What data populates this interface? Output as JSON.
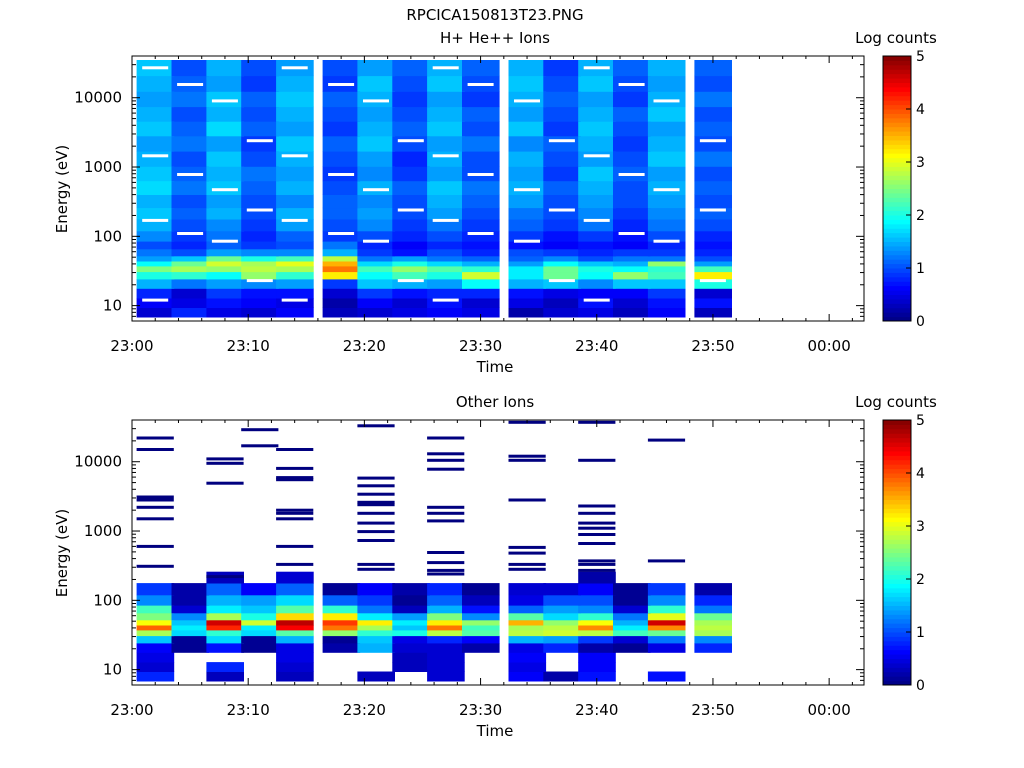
{
  "figure": {
    "title": "RPCICA150813T23.PNG"
  },
  "colors": {
    "colormap": [
      "#00007f",
      "#0000ff",
      "#007fff",
      "#00ffff",
      "#7fff7f",
      "#ffff00",
      "#ff7f00",
      "#ff0000",
      "#7f0000"
    ],
    "background": "#ffffff",
    "axis": "#000000"
  },
  "chart_data": [
    {
      "type": "heatmap",
      "title": "H+ He++ Ions",
      "xlabel": "Time",
      "ylabel": "Energy (eV)",
      "yscale": "log",
      "ylim": [
        6,
        40000
      ],
      "xlim": [
        "23:00",
        "00:03"
      ],
      "x_tick_labels": [
        "23:00",
        "23:10",
        "23:20",
        "23:30",
        "23:40",
        "23:50",
        "00:00"
      ],
      "y_tick_labels": [
        "10",
        "100",
        "1000",
        "10000"
      ],
      "colorbar": {
        "label": "Log counts",
        "range": [
          0,
          5
        ],
        "tick_labels": [
          "0",
          "1",
          "2",
          "3",
          "4",
          "5"
        ]
      },
      "time_bins": [
        "23:02",
        "23:05",
        "23:08",
        "23:11",
        "23:14",
        "23:18",
        "23:21",
        "23:24",
        "23:27",
        "23:30",
        "23:34",
        "23:37",
        "23:40",
        "23:43",
        "23:46",
        "23:50"
      ],
      "energy_bins": [
        8,
        11,
        15,
        21,
        28,
        34,
        41,
        47,
        58,
        75,
        96,
        150,
        210,
        320,
        500,
        800,
        1300,
        2200,
        3600,
        5800,
        9500,
        16000,
        27000
      ],
      "values": [
        [
          0.4,
          0.8,
          0.5,
          0.4,
          0.6,
          0.3,
          0.4,
          0.5,
          0.6,
          0.5,
          0.2,
          0.4,
          0.5,
          0.3,
          0.6,
          0.3
        ],
        [
          0.6,
          0.5,
          0.7,
          0.6,
          0.5,
          0.2,
          0.6,
          0.4,
          0.7,
          0.4,
          0.5,
          0.3,
          0.7,
          0.4,
          0.7,
          0.7
        ],
        [
          0.8,
          0.4,
          0.9,
          0.7,
          0.7,
          0.4,
          0.9,
          0.7,
          0.8,
          0.8,
          0.7,
          0.5,
          0.6,
          0.6,
          0.9,
          0.4
        ],
        [
          1.5,
          1.2,
          1.4,
          1.3,
          1.4,
          0.9,
          1.6,
          1.5,
          1.4,
          1.9,
          1.5,
          1.6,
          1.3,
          1.6,
          1.6,
          2.0
        ],
        [
          2.0,
          2.1,
          1.9,
          2.6,
          2.1,
          3.2,
          1.9,
          2.2,
          2.0,
          2.9,
          1.8,
          2.4,
          1.9,
          2.6,
          2.2,
          3.2
        ],
        [
          2.5,
          2.7,
          2.6,
          2.8,
          2.7,
          3.8,
          2.2,
          2.6,
          2.3,
          2.1,
          1.8,
          2.4,
          2.0,
          1.9,
          2.1,
          2.2
        ],
        [
          1.9,
          2.4,
          2.9,
          2.7,
          3.0,
          3.5,
          1.7,
          2.0,
          1.7,
          1.5,
          1.4,
          1.9,
          1.6,
          1.5,
          2.6,
          1.4
        ],
        [
          1.4,
          1.6,
          2.4,
          2.0,
          2.2,
          2.8,
          1.2,
          1.4,
          1.2,
          1.1,
          1.1,
          1.3,
          1.0,
          1.2,
          1.2,
          1.0
        ],
        [
          1.2,
          1.0,
          1.4,
          1.3,
          1.3,
          1.5,
          0.9,
          0.7,
          1.0,
          0.8,
          1.0,
          0.9,
          0.8,
          0.9,
          0.9,
          0.8
        ],
        [
          1.0,
          0.8,
          1.1,
          0.9,
          1.0,
          1.2,
          0.8,
          0.6,
          0.8,
          0.7,
          0.7,
          0.6,
          0.7,
          0.6,
          0.8,
          0.7
        ],
        [
          1.3,
          0.9,
          1.2,
          0.8,
          1.1,
          0.9,
          1.0,
          0.8,
          1.0,
          0.8,
          0.9,
          0.7,
          0.9,
          0.7,
          1.0,
          0.8
        ],
        [
          1.5,
          1.0,
          1.3,
          0.9,
          1.4,
          1.0,
          1.3,
          0.9,
          1.2,
          0.9,
          1.1,
          0.9,
          1.2,
          0.8,
          1.2,
          1.0
        ],
        [
          1.6,
          1.1,
          1.5,
          1.0,
          1.5,
          1.1,
          1.4,
          1.0,
          1.4,
          1.0,
          1.2,
          1.0,
          1.3,
          0.9,
          1.3,
          1.1
        ],
        [
          1.5,
          1.0,
          1.4,
          1.0,
          1.3,
          1.1,
          1.3,
          1.0,
          1.5,
          1.1,
          1.4,
          1.0,
          1.4,
          1.0,
          1.4,
          1.0
        ],
        [
          1.7,
          1.2,
          1.6,
          1.1,
          1.5,
          1.0,
          1.5,
          1.1,
          1.6,
          1.2,
          1.5,
          1.1,
          1.5,
          1.0,
          1.5,
          1.1
        ],
        [
          1.6,
          1.1,
          1.5,
          1.2,
          1.4,
          0.9,
          1.3,
          0.9,
          1.4,
          1.0,
          1.4,
          0.9,
          1.6,
          1.1,
          1.4,
          1.0
        ],
        [
          1.5,
          1.0,
          1.6,
          1.0,
          1.5,
          1.0,
          1.4,
          0.8,
          1.5,
          1.0,
          1.5,
          1.0,
          1.4,
          1.0,
          1.6,
          1.2
        ],
        [
          1.4,
          1.2,
          1.4,
          0.9,
          1.6,
          1.1,
          1.6,
          1.0,
          1.4,
          1.2,
          1.3,
          1.1,
          1.5,
          0.9,
          1.5,
          1.0
        ],
        [
          1.6,
          1.1,
          1.7,
          1.1,
          1.4,
          0.9,
          1.5,
          1.1,
          1.6,
          1.0,
          1.6,
          0.9,
          1.6,
          1.0,
          1.4,
          1.1
        ],
        [
          1.5,
          1.0,
          1.5,
          1.0,
          1.5,
          1.0,
          1.4,
          1.0,
          1.5,
          1.1,
          1.4,
          1.0,
          1.5,
          1.1,
          1.6,
          1.0
        ],
        [
          1.4,
          1.2,
          1.6,
          1.1,
          1.6,
          1.1,
          1.5,
          0.9,
          1.4,
          0.9,
          1.5,
          1.1,
          1.4,
          0.9,
          1.5,
          1.2
        ],
        [
          1.5,
          1.1,
          1.4,
          0.9,
          1.5,
          0.9,
          1.6,
          1.0,
          1.6,
          1.0,
          1.6,
          1.0,
          1.6,
          1.0,
          1.4,
          1.0
        ],
        [
          1.6,
          1.0,
          1.5,
          1.0,
          1.4,
          1.0,
          1.4,
          1.1,
          1.5,
          1.1,
          1.5,
          0.9,
          1.5,
          1.1,
          1.5,
          1.1
        ]
      ]
    },
    {
      "type": "heatmap",
      "title": "Other Ions",
      "xlabel": "Time",
      "ylabel": "Energy (eV)",
      "yscale": "log",
      "ylim": [
        6,
        40000
      ],
      "xlim": [
        "23:00",
        "00:03"
      ],
      "x_tick_labels": [
        "23:00",
        "23:10",
        "23:20",
        "23:30",
        "23:40",
        "23:50",
        "00:00"
      ],
      "y_tick_labels": [
        "10",
        "100",
        "1000",
        "10000"
      ],
      "colorbar": {
        "label": "Log counts",
        "range": [
          0,
          5
        ],
        "tick_labels": [
          "0",
          "1",
          "2",
          "3",
          "4",
          "5"
        ]
      },
      "time_bins": [
        "23:02",
        "23:05",
        "23:08",
        "23:11",
        "23:14",
        "23:18",
        "23:21",
        "23:24",
        "23:27",
        "23:30",
        "23:34",
        "23:37",
        "23:40",
        "23:43",
        "23:46",
        "23:50"
      ],
      "energy_bins": [
        8,
        11,
        15,
        21,
        28,
        34,
        41,
        47,
        58,
        75,
        96,
        150,
        210,
        320,
        500,
        800,
        1300,
        2200,
        3600,
        5800,
        9500,
        16000,
        27000
      ],
      "values": [
        [
          0.8,
          null,
          0.3,
          null,
          0.3,
          null,
          0.3,
          null,
          0.4,
          null,
          0.6,
          0.2,
          0.7,
          null,
          0.7,
          null
        ],
        [
          0.4,
          null,
          0.8,
          null,
          0.4,
          null,
          null,
          0.3,
          0.4,
          null,
          0.5,
          null,
          0.6,
          null,
          null,
          null
        ],
        [
          0.5,
          null,
          null,
          null,
          0.5,
          null,
          null,
          0.3,
          0.4,
          null,
          0.6,
          null,
          0.6,
          null,
          null,
          null
        ],
        [
          0.6,
          0.1,
          0.7,
          0.1,
          0.5,
          0.2,
          1.5,
          0.4,
          0.4,
          0.2,
          0.5,
          0.8,
          0.2,
          0.1,
          0.5,
          0.8
        ],
        [
          1.6,
          0.1,
          1.7,
          0.1,
          1.5,
          0.1,
          1.6,
          0.5,
          0.8,
          0.6,
          1.5,
          1.4,
          0.9,
          0.4,
          1.2,
          1.3
        ],
        [
          2.7,
          1.7,
          2.1,
          1.7,
          2.3,
          2.6,
          2.1,
          2.0,
          2.8,
          2.3,
          2.8,
          2.9,
          2.8,
          2.2,
          2.4,
          2.7
        ],
        [
          3.9,
          1.8,
          4.2,
          1.8,
          4.4,
          3.8,
          2.7,
          1.6,
          3.8,
          2.2,
          2.7,
          2.8,
          3.7,
          1.8,
          3.7,
          2.8
        ],
        [
          3.1,
          1.6,
          4.6,
          2.9,
          4.7,
          4.1,
          3.2,
          1.8,
          3.2,
          2.6,
          3.5,
          2.6,
          3.1,
          1.5,
          4.6,
          2.7
        ],
        [
          2.5,
          1.3,
          2.7,
          2.0,
          3.3,
          3.2,
          1.8,
          1.4,
          2.5,
          1.3,
          2.3,
          1.7,
          2.1,
          1.2,
          3.0,
          2.4
        ],
        [
          2.2,
          0.4,
          1.8,
          1.6,
          2.3,
          2.1,
          1.2,
          0.3,
          1.5,
          0.7,
          1.1,
          1.4,
          1.3,
          0.4,
          2.1,
          1.2
        ],
        [
          1.3,
          0.2,
          1.5,
          1.4,
          1.7,
          1.1,
          0.9,
          0.1,
          1.1,
          0.3,
          0.5,
          1.0,
          1.0,
          0.1,
          1.3,
          0.8
        ],
        [
          0.9,
          0.2,
          1.1,
          0.6,
          1.1,
          0.1,
          0.6,
          0.2,
          0.8,
          0.1,
          0.4,
          0.4,
          0.6,
          0.1,
          0.9,
          0.2
        ],
        [
          null,
          null,
          0.3,
          null,
          0.4,
          null,
          null,
          null,
          null,
          null,
          null,
          null,
          0.2,
          null,
          null,
          null
        ],
        [
          null,
          null,
          null,
          null,
          null,
          null,
          null,
          null,
          null,
          null,
          null,
          null,
          null,
          null,
          null,
          null
        ],
        [
          null,
          null,
          null,
          null,
          null,
          null,
          null,
          null,
          null,
          null,
          null,
          null,
          null,
          null,
          null,
          null
        ],
        [
          null,
          null,
          null,
          null,
          null,
          null,
          null,
          null,
          null,
          null,
          null,
          null,
          null,
          null,
          null,
          null
        ],
        [
          null,
          null,
          null,
          null,
          null,
          null,
          null,
          null,
          null,
          null,
          null,
          null,
          null,
          null,
          null,
          null
        ],
        [
          null,
          null,
          null,
          null,
          null,
          null,
          null,
          null,
          null,
          null,
          null,
          null,
          null,
          null,
          null,
          null
        ],
        [
          null,
          null,
          null,
          null,
          null,
          null,
          null,
          null,
          null,
          null,
          null,
          null,
          null,
          null,
          null,
          null
        ],
        [
          null,
          null,
          null,
          null,
          null,
          null,
          null,
          null,
          null,
          null,
          null,
          null,
          null,
          null,
          null,
          null
        ],
        [
          null,
          null,
          null,
          null,
          null,
          null,
          null,
          null,
          null,
          null,
          null,
          null,
          null,
          null,
          null,
          null
        ],
        [
          null,
          null,
          null,
          null,
          null,
          null,
          null,
          null,
          null,
          null,
          null,
          null,
          null,
          null,
          null,
          null
        ],
        [
          null,
          null,
          null,
          null,
          null,
          null,
          null,
          null,
          null,
          null,
          null,
          null,
          null,
          null,
          null,
          null
        ]
      ],
      "sparse_lines": [
        {
          "t": "23:02",
          "e": [
            22000,
            15000,
            3100,
            2800,
            2200,
            1500,
            600,
            310
          ]
        },
        {
          "t": "23:08",
          "e": [
            11000,
            9500,
            4900,
            220
          ]
        },
        {
          "t": "23:11",
          "e": [
            29000,
            17000
          ]
        },
        {
          "t": "23:14",
          "e": [
            15000,
            8000,
            5900,
            5500,
            2000,
            1800,
            1500,
            600,
            330
          ]
        },
        {
          "t": "23:21",
          "e": [
            33000,
            5800,
            4500,
            3400,
            2600,
            2400,
            1800,
            1300,
            980,
            730,
            330,
            280
          ]
        },
        {
          "t": "23:27",
          "e": [
            22000,
            13000,
            10500,
            7800,
            2200,
            1800,
            1400,
            490,
            350,
            270,
            240
          ]
        },
        {
          "t": "23:34",
          "e": [
            37000,
            12000,
            10500,
            2800,
            580,
            480,
            330,
            280
          ]
        },
        {
          "t": "23:40",
          "e": [
            37000,
            10500,
            2300,
            1800,
            1300,
            1100,
            890,
            660,
            370,
            330,
            270
          ]
        },
        {
          "t": "23:46",
          "e": [
            20500,
            370
          ]
        }
      ]
    }
  ]
}
